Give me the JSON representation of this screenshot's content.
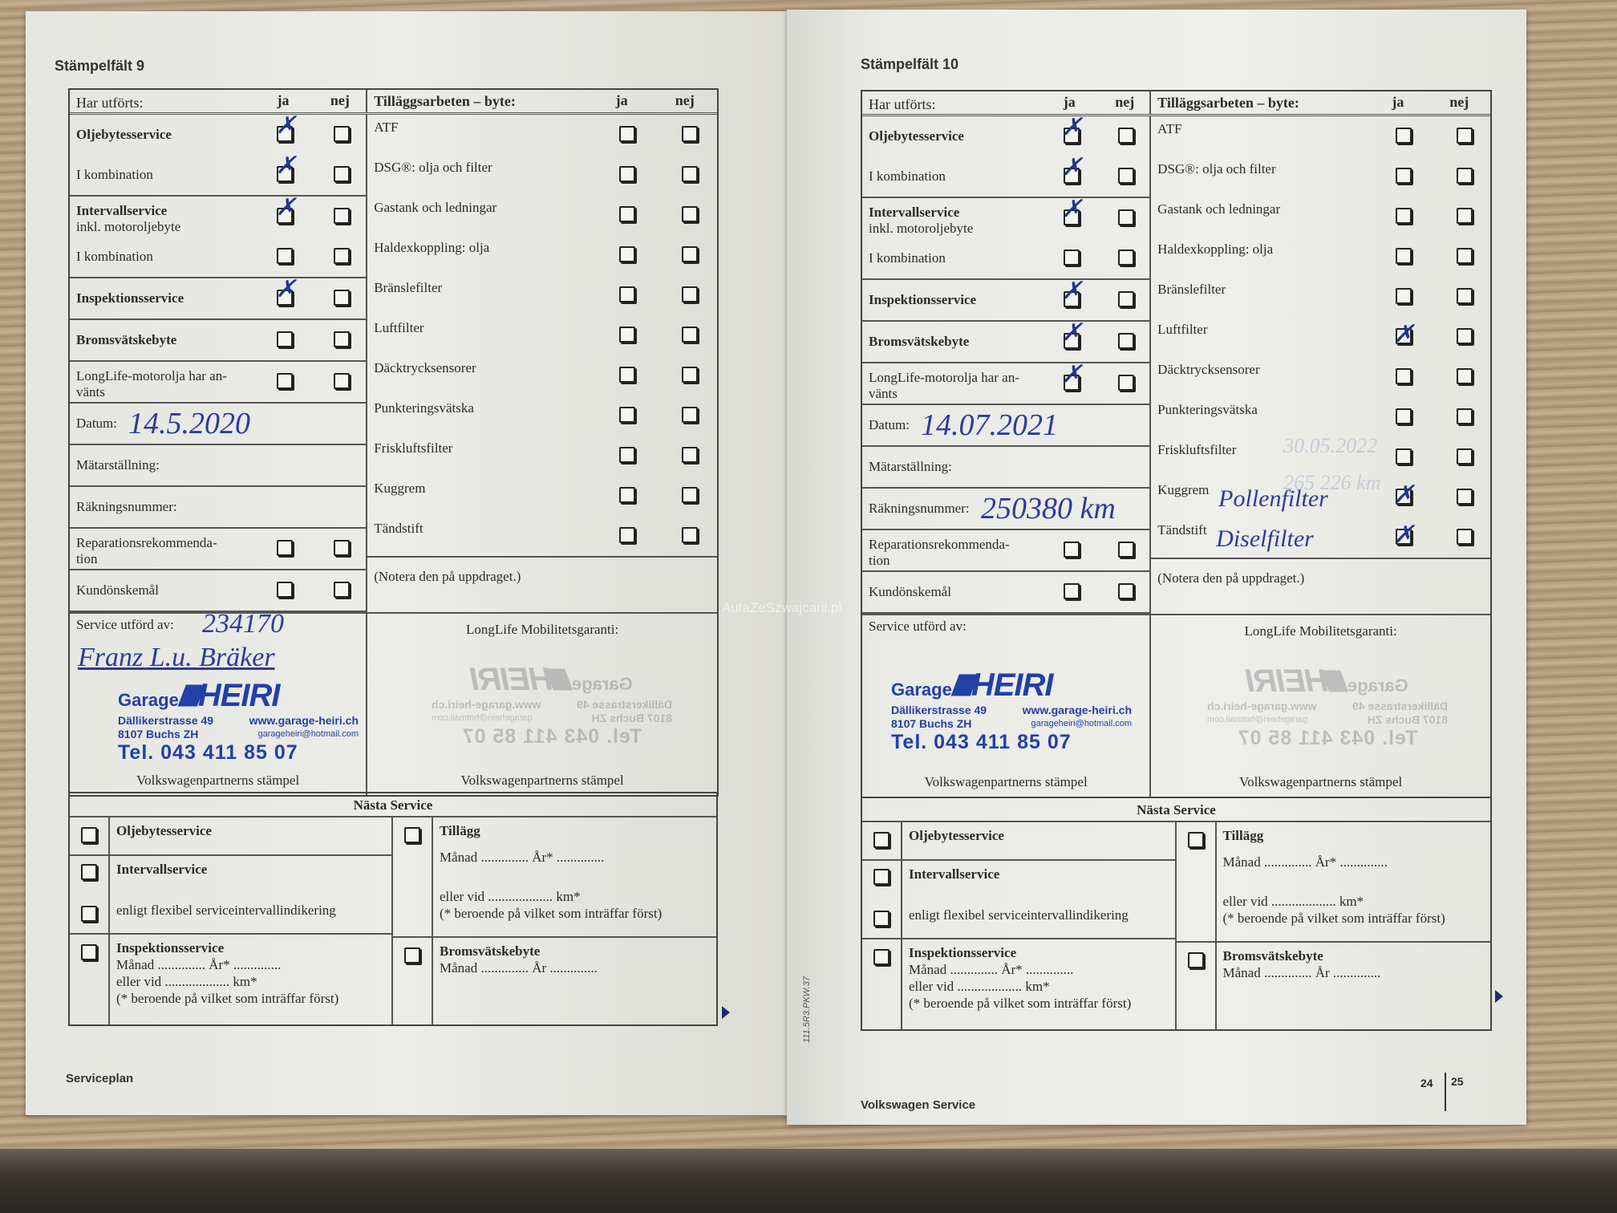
{
  "stamp": {
    "garage": "Garage",
    "name": "HEIRI",
    "street": "Dällikerstrasse 49",
    "city": "8107 Buchs ZH",
    "web": "www.garage-heiri.ch",
    "email": "garageheiri@hotmail.com",
    "tel": "Tel. 043 411 85 07",
    "color": "#2240a8"
  },
  "watermark": "AutaZeSzwajcarii.pl",
  "gutter_code": "111.5R3.PKW.37",
  "pages": [
    {
      "title": "Stämpelfält 9",
      "header": {
        "done": "Har utförts:",
        "ja": "ja",
        "nej": "nej",
        "extra": "Tilläggsarbeten – byte:",
        "ja2": "ja",
        "nej2": "nej"
      },
      "sections": [
        [
          {
            "label": "Oljebytesservice",
            "bold": true,
            "checkbox": true,
            "ja": true,
            "nej": false
          },
          {
            "label": "I kombination",
            "bold": false,
            "checkbox": true,
            "ja": true,
            "nej": false
          }
        ],
        [
          {
            "label": "Intervallservice",
            "sub": "inkl. motoroljebyte",
            "bold": true,
            "checkbox": true,
            "ja": true,
            "nej": false
          },
          {
            "label": "I kombination",
            "bold": false,
            "checkbox": true,
            "ja": false,
            "nej": false
          }
        ],
        [
          {
            "label": "Inspektionsservice",
            "bold": true,
            "checkbox": true,
            "ja": true,
            "nej": false
          }
        ],
        [
          {
            "label": "Bromsvätskebyte",
            "bold": true,
            "checkbox": true,
            "ja": false,
            "nej": false
          }
        ],
        [
          {
            "label": "LongLife-motorolja har an-\nvänts",
            "bold": false,
            "checkbox": true,
            "ja": false,
            "nej": false
          }
        ],
        [
          {
            "label": "Datum:",
            "bold": false,
            "checkbox": false,
            "handwritten": "14.5.2020"
          }
        ],
        [
          {
            "label": "Mätarställning:",
            "bold": false,
            "checkbox": false
          }
        ],
        [
          {
            "label": "Räkningsnummer:",
            "bold": false,
            "checkbox": false
          }
        ],
        [
          {
            "label": "Reparationsrekommenda-\ntion",
            "bold": false,
            "checkbox": true,
            "ja": false,
            "nej": false
          }
        ],
        [
          {
            "label": "Kundönskemål",
            "bold": false,
            "checkbox": true,
            "ja": false,
            "nej": false
          }
        ]
      ],
      "extras": [
        {
          "label": "ATF",
          "ja": false,
          "nej": false
        },
        {
          "label": "DSG®: olja och filter",
          "ja": false,
          "nej": false
        },
        {
          "label": "Gastank och ledningar",
          "ja": false,
          "nej": false
        },
        {
          "label": "Haldexkoppling: olja",
          "ja": false,
          "nej": false
        },
        {
          "label": "Bränslefilter",
          "ja": false,
          "nej": false
        },
        {
          "label": "Luftfilter",
          "ja": false,
          "nej": false
        },
        {
          "label": "Däcktrycksensorer",
          "ja": false,
          "nej": false
        },
        {
          "label": "Punkteringsvätska",
          "ja": false,
          "nej": false
        },
        {
          "label": "Friskluftsfilter",
          "ja": false,
          "nej": false
        },
        {
          "label": "Kuggrem",
          "ja": false,
          "nej": false
        },
        {
          "label": "Tändstift",
          "ja": false,
          "nej": false
        }
      ],
      "note": "(Notera den på uppdraget.)",
      "service_by": "Service utförd av:",
      "service_by_handwritten": "234170",
      "signature": "Franz L.u. Bräker",
      "longlife": "LongLife Mobilitetsgaranti:",
      "partner_stamp": "Volkswagenpartnerns stämpel",
      "partner_stamp2": "Volkswagenpartnerns stämpel",
      "footer": "Serviceplan"
    },
    {
      "title": "Stämpelfält 10",
      "header": {
        "done": "Har utförts:",
        "ja": "ja",
        "nej": "nej",
        "extra": "Tilläggsarbeten – byte:",
        "ja2": "ja",
        "nej2": "nej"
      },
      "sections": [
        [
          {
            "label": "Oljebytesservice",
            "bold": true,
            "checkbox": true,
            "ja": true,
            "nej": false
          },
          {
            "label": "I kombination",
            "bold": false,
            "checkbox": true,
            "ja": true,
            "nej": false
          }
        ],
        [
          {
            "label": "Intervallservice",
            "sub": "inkl. motoroljebyte",
            "bold": true,
            "checkbox": true,
            "ja": true,
            "nej": false
          },
          {
            "label": "I kombination",
            "bold": false,
            "checkbox": true,
            "ja": false,
            "nej": false
          }
        ],
        [
          {
            "label": "Inspektionsservice",
            "bold": true,
            "checkbox": true,
            "ja": true,
            "nej": false
          }
        ],
        [
          {
            "label": "Bromsvätskebyte",
            "bold": true,
            "checkbox": true,
            "ja": true,
            "nej": false
          }
        ],
        [
          {
            "label": "LongLife-motorolja har an-\nvänts",
            "bold": false,
            "checkbox": true,
            "ja": true,
            "nej": false
          }
        ],
        [
          {
            "label": "Datum:",
            "bold": false,
            "checkbox": false,
            "handwritten": "14.07.2021"
          }
        ],
        [
          {
            "label": "Mätarställning:",
            "bold": false,
            "checkbox": false
          }
        ],
        [
          {
            "label": "Räkningsnummer:",
            "bold": false,
            "checkbox": false,
            "handwritten": "250380 km"
          }
        ],
        [
          {
            "label": "Reparationsrekommenda-\ntion",
            "bold": false,
            "checkbox": true,
            "ja": false,
            "nej": false
          }
        ],
        [
          {
            "label": "Kundönskemål",
            "bold": false,
            "checkbox": true,
            "ja": false,
            "nej": false
          }
        ]
      ],
      "extras": [
        {
          "label": "ATF",
          "ja": false,
          "nej": false
        },
        {
          "label": "DSG®: olja och filter",
          "ja": false,
          "nej": false
        },
        {
          "label": "Gastank och ledningar",
          "ja": false,
          "nej": false
        },
        {
          "label": "Haldexkoppling: olja",
          "ja": false,
          "nej": false
        },
        {
          "label": "Bränslefilter",
          "ja": false,
          "nej": false
        },
        {
          "label": "Luftfilter",
          "ja": true,
          "nej": false
        },
        {
          "label": "Däcktrycksensorer",
          "ja": false,
          "nej": false
        },
        {
          "label": "Punkteringsvätska",
          "ja": false,
          "nej": false
        },
        {
          "label": "Friskluftsfilter",
          "ja": false,
          "nej": false
        },
        {
          "label": "Kuggrem",
          "ja": true,
          "nej": false,
          "handwritten": "Pollenfilter"
        },
        {
          "label": "Tändstift",
          "ja": true,
          "nej": false,
          "handwritten": "Diselfilter"
        }
      ],
      "bleed_through": [
        "30.05.2022",
        "265 226 km"
      ],
      "note": "(Notera den på uppdraget.)",
      "service_by": "Service utförd av:",
      "longlife": "LongLife Mobilitetsgaranti:",
      "partner_stamp": "Volkswagenpartnerns stämpel",
      "partner_stamp2": "Volkswagenpartnerns stämpel",
      "footer": "Volkswagen Service",
      "page_numbers": [
        "24",
        "25"
      ]
    }
  ],
  "next_service": {
    "title": "Nästa Service",
    "oil": "Oljebytesservice",
    "interval": "Intervallservice",
    "flexible": "enligt flexibel serviceintervallindikering",
    "inspection": "Inspektionsservice",
    "month_year": "Månad .............. År* ..............",
    "or_km": "eller vid ................... km*",
    "footnote": "(* beroende på vilket som inträffar först)",
    "extra": "Tillägg",
    "brake": "Bromsvätskebyte",
    "month_year_brake": "Månad .............. År .............."
  }
}
